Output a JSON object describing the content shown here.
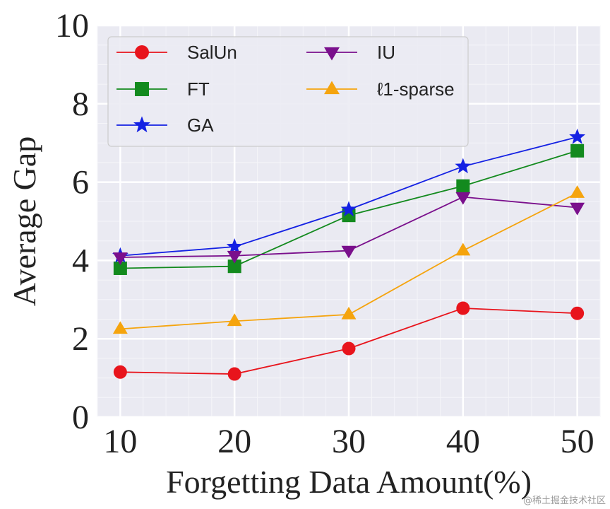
{
  "chart_data": {
    "type": "line",
    "title": "",
    "xlabel": "Forgetting Data Amount(%)",
    "ylabel": "Average Gap",
    "x": [
      10,
      20,
      30,
      40,
      50
    ],
    "xlim": [
      8,
      52
    ],
    "ylim": [
      0,
      10
    ],
    "xticks": [
      "10",
      "20",
      "30",
      "40",
      "50"
    ],
    "yticks": [
      "0",
      "2",
      "4",
      "6",
      "8",
      "10"
    ],
    "grid": true,
    "legend_position": "top-left",
    "series": [
      {
        "name": "SalUn",
        "color": "#e8141c",
        "marker": "circle",
        "values": [
          1.15,
          1.1,
          1.75,
          2.78,
          2.65
        ]
      },
      {
        "name": "FT",
        "color": "#138a1e",
        "marker": "square",
        "values": [
          3.8,
          3.85,
          5.15,
          5.9,
          6.8
        ]
      },
      {
        "name": "GA",
        "color": "#1421e3",
        "marker": "star",
        "values": [
          4.12,
          4.35,
          5.3,
          6.4,
          7.15
        ]
      },
      {
        "name": "IU",
        "color": "#7a0f8c",
        "marker": "triangle-down",
        "values": [
          4.08,
          4.12,
          4.25,
          5.62,
          5.35
        ]
      },
      {
        "name": "ℓ1-sparse",
        "color": "#f5a40e",
        "marker": "triangle-up",
        "values": [
          2.25,
          2.45,
          2.62,
          4.25,
          5.72
        ]
      }
    ]
  },
  "watermark": "@稀土掘金技术社区"
}
